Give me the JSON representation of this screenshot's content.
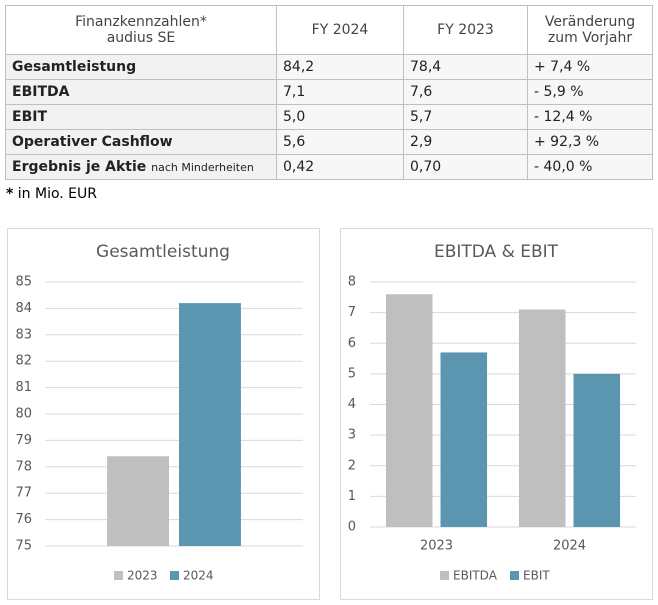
{
  "table": {
    "header": [
      [
        "Finanzkennzahlen*",
        "audius SE"
      ],
      "FY 2024",
      "FY 2023",
      [
        "Veränderung",
        "zum Vorjahr"
      ]
    ],
    "rows": [
      [
        "Gesamtleistung",
        "84,2",
        "78,4",
        "+ 7,4 %"
      ],
      [
        "EBITDA",
        "7,1",
        "7,6",
        "- 5,9 %"
      ],
      [
        "EBIT",
        "5,0",
        "5,7",
        "- 12,4 %"
      ],
      [
        "Operativer Cashflow",
        "5,6",
        "2,9",
        "+ 92,3 %"
      ],
      [
        "Ergebnis je Aktie",
        "0,42",
        "0,70",
        "- 40,0 %"
      ]
    ],
    "row_note": "nach Minderheiten"
  },
  "footnote": {
    "mark": "*",
    "text": "in Mio. EUR"
  },
  "chart_data": [
    {
      "type": "bar",
      "title": "Gesamtleistung",
      "categories": [
        null
      ],
      "series": [
        {
          "name": "2023",
          "color": "#bfbfbf",
          "values": [
            78.4
          ]
        },
        {
          "name": "2024",
          "color": "#5b95b0",
          "values": [
            84.2
          ]
        }
      ],
      "ylim": [
        75,
        85
      ],
      "yticks": [
        75,
        76,
        77,
        78,
        79,
        80,
        81,
        82,
        83,
        84,
        85
      ],
      "grid": true
    },
    {
      "type": "bar",
      "title": "EBITDA & EBIT",
      "categories": [
        "2023",
        "2024"
      ],
      "series": [
        {
          "name": "EBITDA",
          "color": "#bfbfbf",
          "values": [
            7.6,
            7.1
          ]
        },
        {
          "name": "EBIT",
          "color": "#5b95b0",
          "values": [
            5.7,
            5.0
          ]
        }
      ],
      "ylim": [
        0,
        8
      ],
      "yticks": [
        0,
        1,
        2,
        3,
        4,
        5,
        6,
        7,
        8
      ],
      "grid": true
    }
  ]
}
